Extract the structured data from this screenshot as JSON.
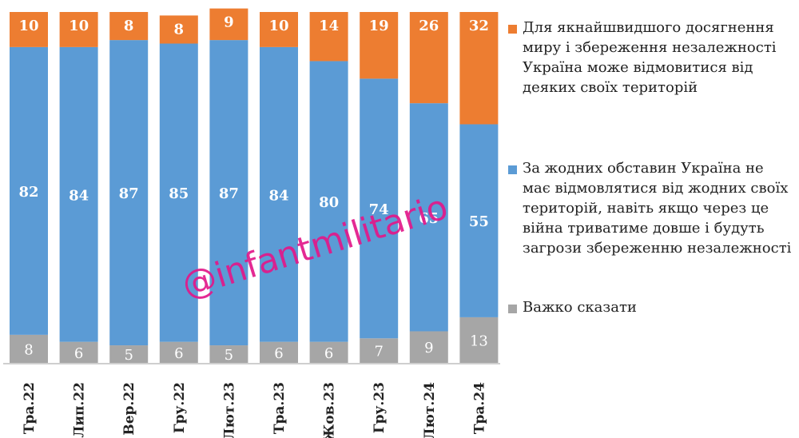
{
  "chart_data": {
    "type": "bar",
    "stacked": true,
    "categories": [
      "Тра.22",
      "Лип.22",
      "Вер.22",
      "Гру.22",
      "Лют.23",
      "Тра.23",
      "Жов.23",
      "Гру.23",
      "Лют.24",
      "Тра.24"
    ],
    "series": [
      {
        "name": "Важко сказати",
        "color": "#a6a6a6",
        "values": [
          8,
          6,
          5,
          6,
          5,
          6,
          6,
          7,
          9,
          13
        ]
      },
      {
        "name": "За жодних обставин Україна не має відмовлятися від жодних своїх територій, навіть якщо через це війна триватиме довше і будуть загрози збереженню незалежності",
        "color": "#5b9bd5",
        "values": [
          82,
          84,
          87,
          85,
          87,
          84,
          80,
          74,
          65,
          55
        ]
      },
      {
        "name": "Для якнайшвидшого досягнення миру і збереження незалежності Україна може відмовитися від деяких своїх територій",
        "color": "#ed7d31",
        "values": [
          10,
          10,
          8,
          8,
          9,
          10,
          14,
          19,
          26,
          32
        ]
      }
    ],
    "ylim": [
      0,
      100
    ],
    "grid": false,
    "legend_position": "right"
  },
  "legend": [
    {
      "color": "#ed7d31",
      "label": "Для якнайшвидшого досягнення миру і збереження незалежності Україна може відмовитися від деяких своїх територій"
    },
    {
      "color": "#5b9bd5",
      "label": "За жодних обставин Україна не має відмовлятися від жодних своїх територій, навіть якщо через це війна триватиме довше і будуть загрози збереженню незалежності"
    },
    {
      "color": "#a6a6a6",
      "label": "Важко сказати"
    }
  ],
  "watermark": "@infantmilitario"
}
